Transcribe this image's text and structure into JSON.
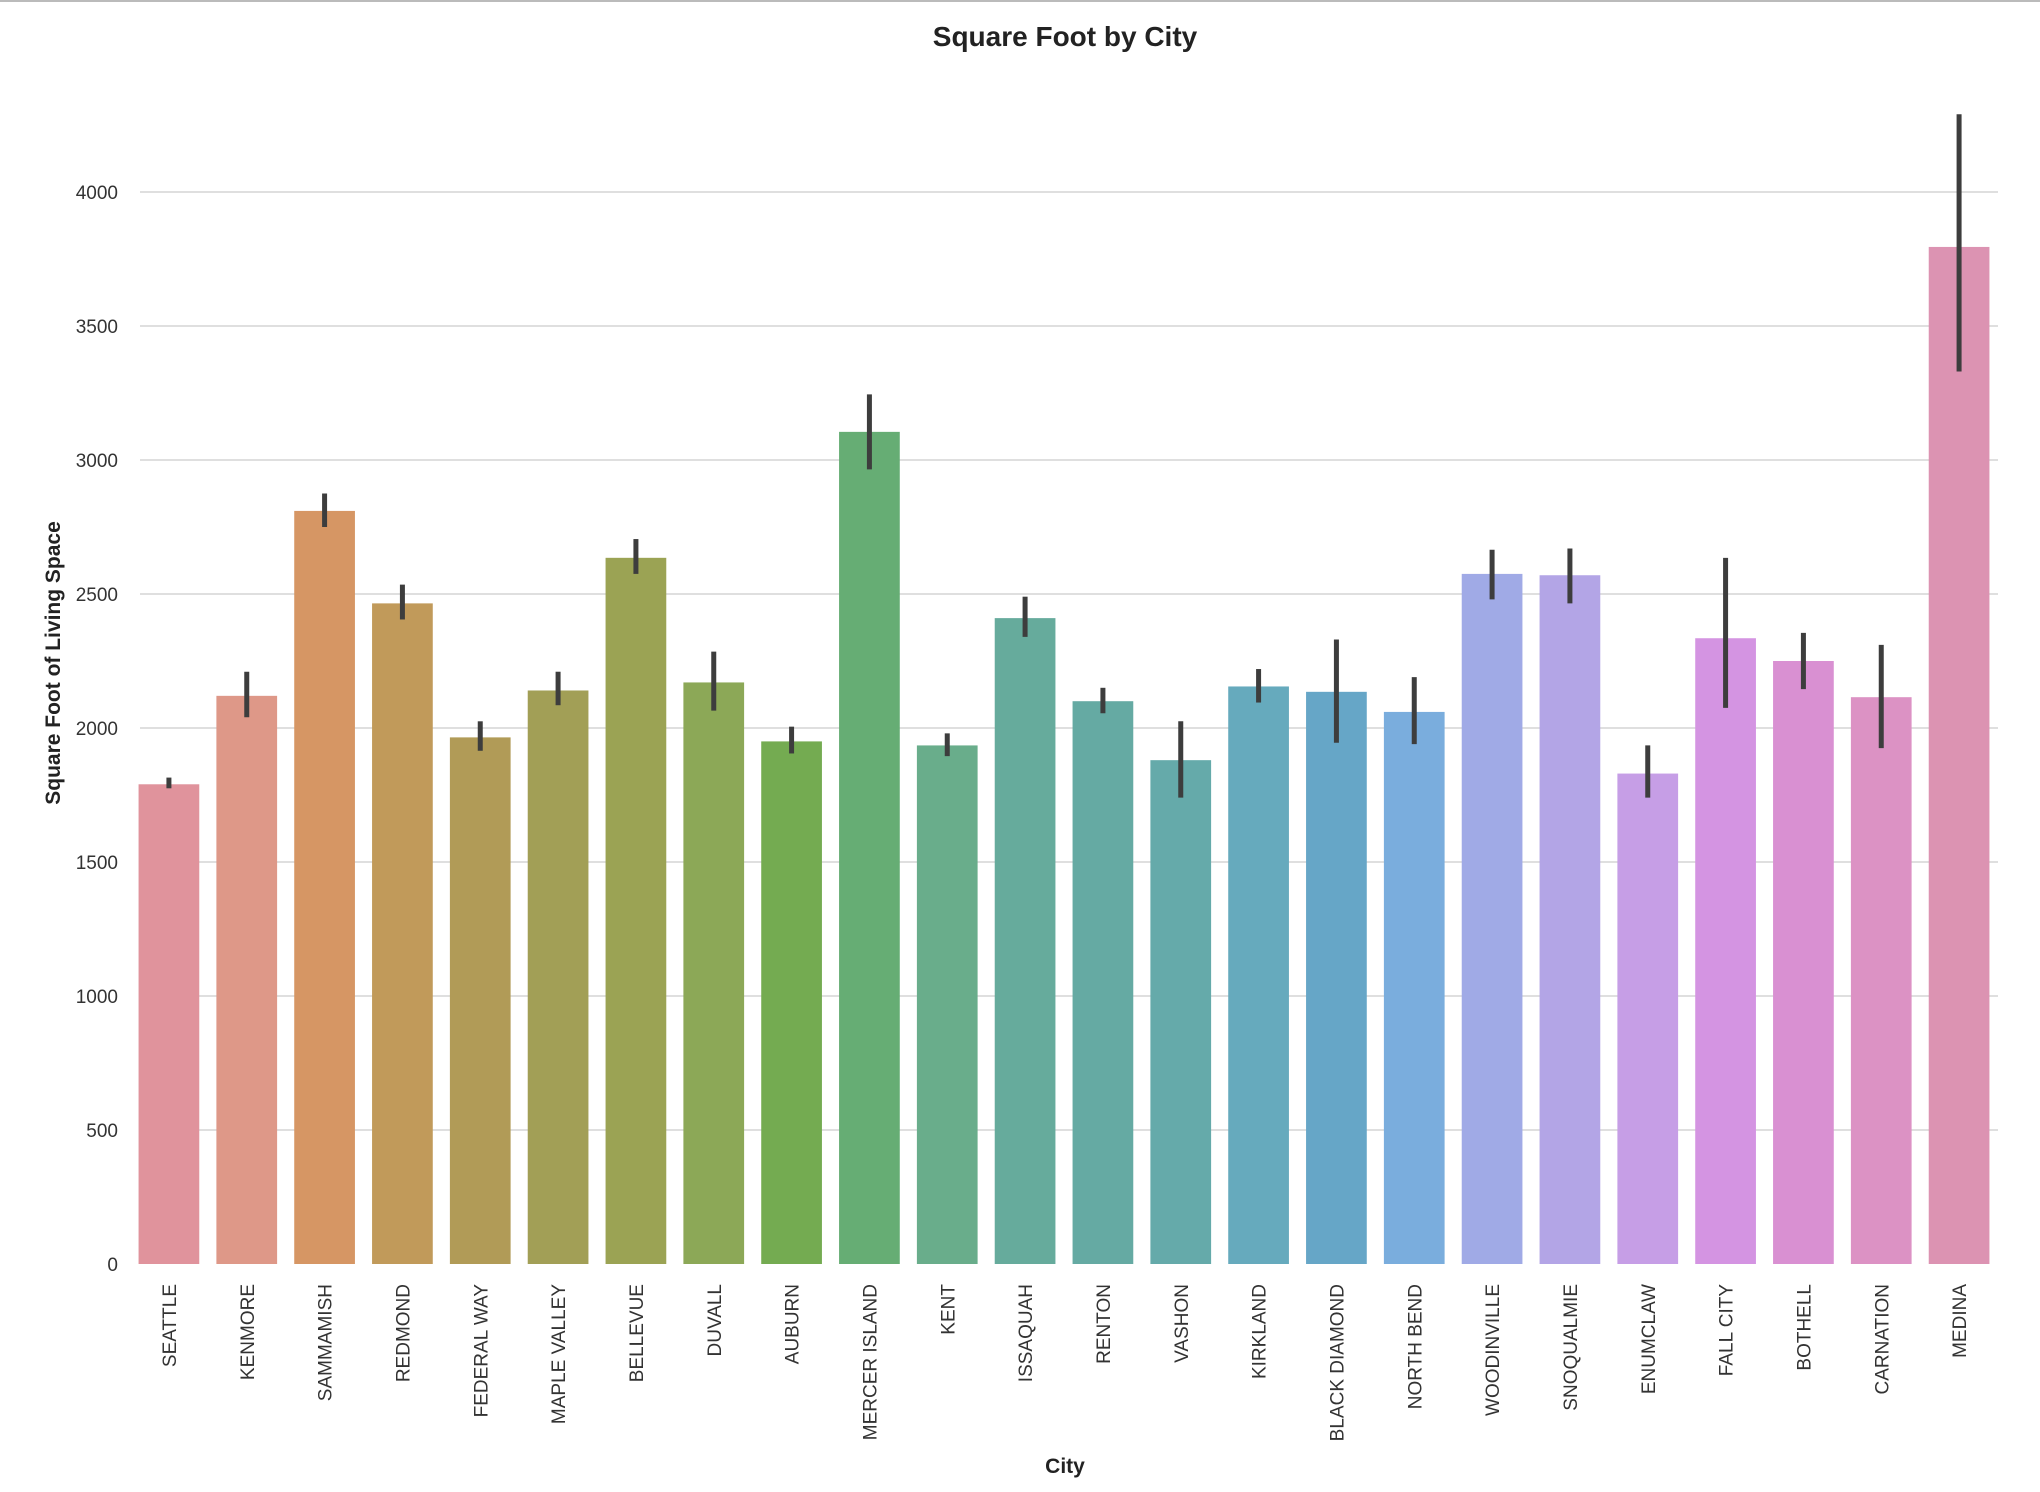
{
  "chart_data": {
    "type": "bar",
    "title": "Square Foot by City",
    "xlabel": "City",
    "ylabel": "Square Foot of Living Space",
    "ylim": [
      0,
      4350
    ],
    "yticks": [
      0,
      500,
      1000,
      1500,
      2000,
      2500,
      3000,
      3500,
      4000
    ],
    "grid": "horizontal",
    "legend": "none",
    "categories": [
      "SEATTLE",
      "KENMORE",
      "SAMMAMISH",
      "REDMOND",
      "FEDERAL WAY",
      "MAPLE VALLEY",
      "BELLEVUE",
      "DUVALL",
      "AUBURN",
      "MERCER ISLAND",
      "KENT",
      "ISSAQUAH",
      "RENTON",
      "VASHON",
      "KIRKLAND",
      "BLACK DIAMOND",
      "NORTH BEND",
      "WOODINVILLE",
      "SNOQUALMIE",
      "ENUMCLAW",
      "FALL CITY",
      "BOTHELL",
      "CARNATION",
      "MEDINA"
    ],
    "values": [
      1790,
      2120,
      2810,
      2465,
      1965,
      2140,
      2635,
      2170,
      1950,
      3105,
      1935,
      2410,
      2100,
      1880,
      2155,
      2135,
      2060,
      2575,
      2570,
      1830,
      2335,
      2250,
      2115,
      3795
    ],
    "error_low": [
      1775,
      2040,
      2750,
      2405,
      1915,
      2085,
      2575,
      2065,
      1905,
      2965,
      1895,
      2340,
      2055,
      1740,
      2095,
      1945,
      1940,
      2480,
      2465,
      1740,
      2075,
      2145,
      1925,
      3330
    ],
    "error_high": [
      1815,
      2210,
      2875,
      2535,
      2025,
      2210,
      2705,
      2285,
      2005,
      3245,
      1980,
      2490,
      2150,
      2025,
      2220,
      2330,
      2190,
      2665,
      2670,
      1935,
      2635,
      2355,
      2310,
      4290
    ],
    "colors": [
      "#e0939c",
      "#de9888",
      "#d69664",
      "#c19a5a",
      "#b19b57",
      "#a29f56",
      "#9ba354",
      "#8ca857",
      "#74ab51",
      "#66ad74",
      "#69ad8b",
      "#66ab9c",
      "#65aaa3",
      "#65aaaa",
      "#66aabd",
      "#66a6c7",
      "#7aaddd",
      "#a0aae6",
      "#b3a5e6",
      "#c69ee6",
      "#d494e2",
      "#d990d2",
      "#dc92c4",
      "#dc93b2"
    ]
  }
}
